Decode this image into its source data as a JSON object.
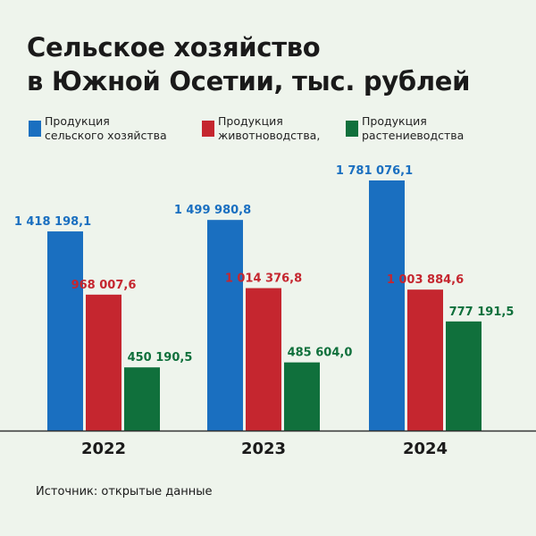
{
  "title_line1": "Сельское хозяйство",
  "title_line2": "в Южной Осетии, тыс. рублей",
  "source": "Источник: открытые данные",
  "legend": [
    {
      "line1": "Продукция",
      "line2": "сельского хозяйства",
      "color": "#1a6fc0"
    },
    {
      "line1": "Продукция",
      "line2": "животноводства,",
      "color": "#c5262f"
    },
    {
      "line1": "Продукция",
      "line2": "растениеводства",
      "color": "#10703c"
    }
  ],
  "chart_data": {
    "type": "bar",
    "categories": [
      "2022",
      "2023",
      "2024"
    ],
    "series": [
      {
        "name": "Продукция сельского хозяйства",
        "color": "#1a6fc0",
        "values": [
          1418198.1,
          1499980.8,
          1781076.1
        ],
        "labels": [
          "1 418 198,1",
          "1 499 980,8",
          "1 781 076,1"
        ]
      },
      {
        "name": "Продукция животноводства,",
        "color": "#c5262f",
        "values": [
          968007.6,
          1014376.8,
          1003884.6
        ],
        "labels": [
          "968 007,6",
          "1 014 376,8",
          "1 003 884,6"
        ]
      },
      {
        "name": "Продукция растениеводства",
        "color": "#10703c",
        "values": [
          450190.5,
          485604.0,
          777191.5
        ],
        "labels": [
          "450 190,5",
          "485 604,0",
          "777 191,5"
        ]
      }
    ]
  }
}
